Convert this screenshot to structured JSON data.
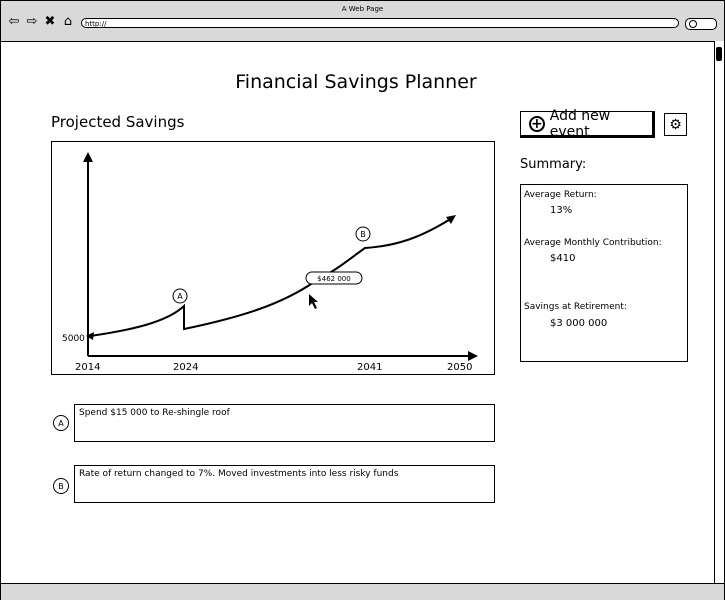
{
  "browser": {
    "window_title": "A Web Page",
    "url": "http://"
  },
  "page": {
    "title": "Financial Savings Planner",
    "section_title": "Projected Savings"
  },
  "toolbar": {
    "add_label": "Add new event"
  },
  "chart_data": {
    "type": "line",
    "x_ticks": [
      "2014",
      "2024",
      "2041",
      "2050"
    ],
    "y_start_label": "5000",
    "tooltip": "$462 000",
    "markers": [
      {
        "label": "A",
        "x": 2024
      },
      {
        "label": "B",
        "x": 2041
      }
    ]
  },
  "summary": {
    "title": "Summary:",
    "items": [
      {
        "label": "Average Return:",
        "value": "13%"
      },
      {
        "label": "Average Monthly Contribution:",
        "value": "$410"
      },
      {
        "label": "Savings at Retirement:",
        "value": "$3 000 000"
      }
    ]
  },
  "events": [
    {
      "marker": "A",
      "text": "Spend $15 000 to Re-shingle roof"
    },
    {
      "marker": "B",
      "text": "Rate of return changed to 7%. Moved investments into less risky funds"
    }
  ]
}
